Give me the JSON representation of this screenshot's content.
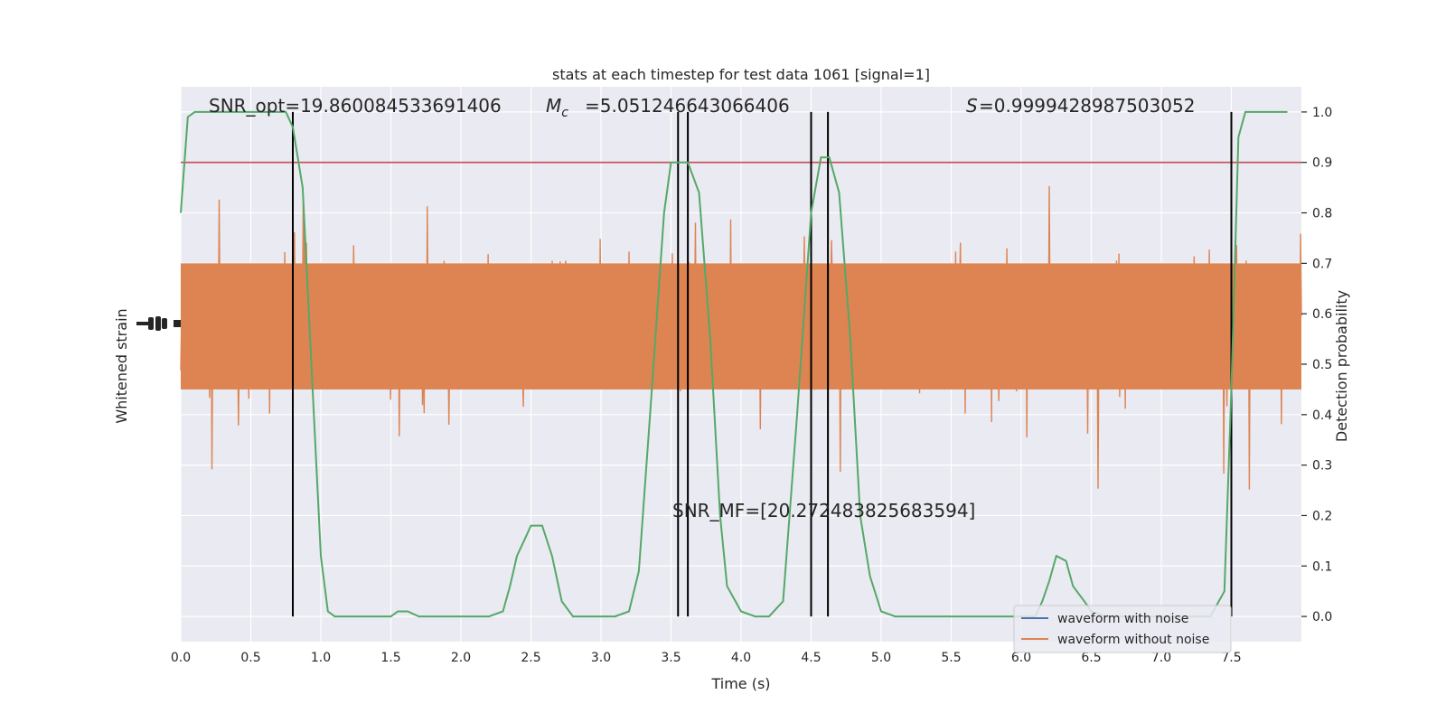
{
  "chart_data": {
    "type": "line",
    "title": "stats at each timestep for test data 1061 [signal=1]",
    "xlabel": "Time (s)",
    "ylabel_left": "Whitened strain",
    "ylabel_right": "Detection probability",
    "xlim": [
      0,
      8
    ],
    "ylim_right": [
      -0.05,
      1.05
    ],
    "x_ticks": [
      "0.0",
      "0.5",
      "1.0",
      "1.5",
      "2.0",
      "2.5",
      "3.0",
      "3.5",
      "4.0",
      "4.5",
      "5.0",
      "5.5",
      "6.0",
      "6.5",
      "7.0",
      "7.5"
    ],
    "x_tick_values": [
      0,
      0.5,
      1,
      1.5,
      2,
      2.5,
      3,
      3.5,
      4,
      4.5,
      5,
      5.5,
      6,
      6.5,
      7,
      7.5
    ],
    "y_ticks_right": [
      "0.0",
      "0.1",
      "0.2",
      "0.3",
      "0.4",
      "0.5",
      "0.6",
      "0.7",
      "0.8",
      "0.9",
      "1.0"
    ],
    "y_tick_values_right": [
      0,
      0.1,
      0.2,
      0.3,
      0.4,
      0.5,
      0.6,
      0.7,
      0.8,
      0.9,
      1.0
    ],
    "annotations": {
      "snr_opt": "SNR_opt=19.860084533691406",
      "mc": "=5.051246643066406",
      "s": "=0.9999428987503052",
      "snr_mf": "SNR_MF=[20.272483825683594]"
    },
    "threshold": 0.9,
    "vertical_lines": [
      0.8,
      3.55,
      3.62,
      4.5,
      4.62,
      7.5
    ],
    "legend": [
      "waveform with noise",
      "waveform without noise"
    ],
    "colors": {
      "noise": "#4c72b0",
      "waveform": "#dd8452",
      "prob": "#55a868",
      "threshold": "#c44e52",
      "vline": "#000000",
      "axes_bg": "#eaeaf2",
      "grid": "#ffffff"
    },
    "series": [
      {
        "name": "Detection probability",
        "x": [
          0.0,
          0.05,
          0.1,
          0.15,
          0.2,
          0.3,
          0.4,
          0.5,
          0.6,
          0.7,
          0.75,
          0.8,
          0.87,
          0.95,
          1.0,
          1.05,
          1.1,
          1.2,
          1.3,
          1.4,
          1.5,
          1.55,
          1.62,
          1.7,
          1.8,
          1.9,
          2.0,
          2.1,
          2.2,
          2.3,
          2.35,
          2.4,
          2.45,
          2.5,
          2.58,
          2.65,
          2.72,
          2.8,
          2.9,
          3.0,
          3.1,
          3.2,
          3.27,
          3.35,
          3.45,
          3.5,
          3.57,
          3.62,
          3.7,
          3.78,
          3.85,
          3.9,
          4.0,
          4.1,
          4.2,
          4.3,
          4.4,
          4.5,
          4.57,
          4.63,
          4.7,
          4.78,
          4.85,
          4.92,
          5.0,
          5.1,
          5.3,
          5.5,
          5.8,
          5.9,
          6.0,
          6.1,
          6.15,
          6.2,
          6.25,
          6.32,
          6.37,
          6.45,
          6.5,
          6.6,
          6.8,
          7.0,
          7.2,
          7.35,
          7.45,
          7.5,
          7.55,
          7.6,
          7.65,
          7.7,
          7.8,
          7.9
        ],
        "values": [
          0.8,
          0.99,
          1.0,
          1.0,
          1.0,
          1.0,
          1.0,
          1.0,
          1.0,
          1.0,
          1.0,
          0.97,
          0.85,
          0.4,
          0.12,
          0.01,
          0.0,
          0.0,
          0.0,
          0.0,
          0.0,
          0.01,
          0.01,
          0.0,
          0.0,
          0.0,
          0.0,
          0.0,
          0.0,
          0.01,
          0.06,
          0.12,
          0.15,
          0.18,
          0.18,
          0.12,
          0.03,
          0.0,
          0.0,
          0.0,
          0.0,
          0.01,
          0.09,
          0.4,
          0.8,
          0.9,
          0.9,
          0.9,
          0.84,
          0.55,
          0.2,
          0.06,
          0.01,
          0.0,
          0.0,
          0.03,
          0.4,
          0.8,
          0.91,
          0.91,
          0.84,
          0.55,
          0.2,
          0.08,
          0.01,
          0.0,
          0.0,
          0.0,
          0.0,
          0.0,
          0.0,
          0.0,
          0.03,
          0.07,
          0.12,
          0.11,
          0.06,
          0.03,
          0.01,
          0.0,
          0.0,
          0.0,
          0.0,
          0.0,
          0.05,
          0.45,
          0.95,
          1.0,
          1.0,
          1.0,
          1.0,
          1.0
        ]
      }
    ]
  }
}
